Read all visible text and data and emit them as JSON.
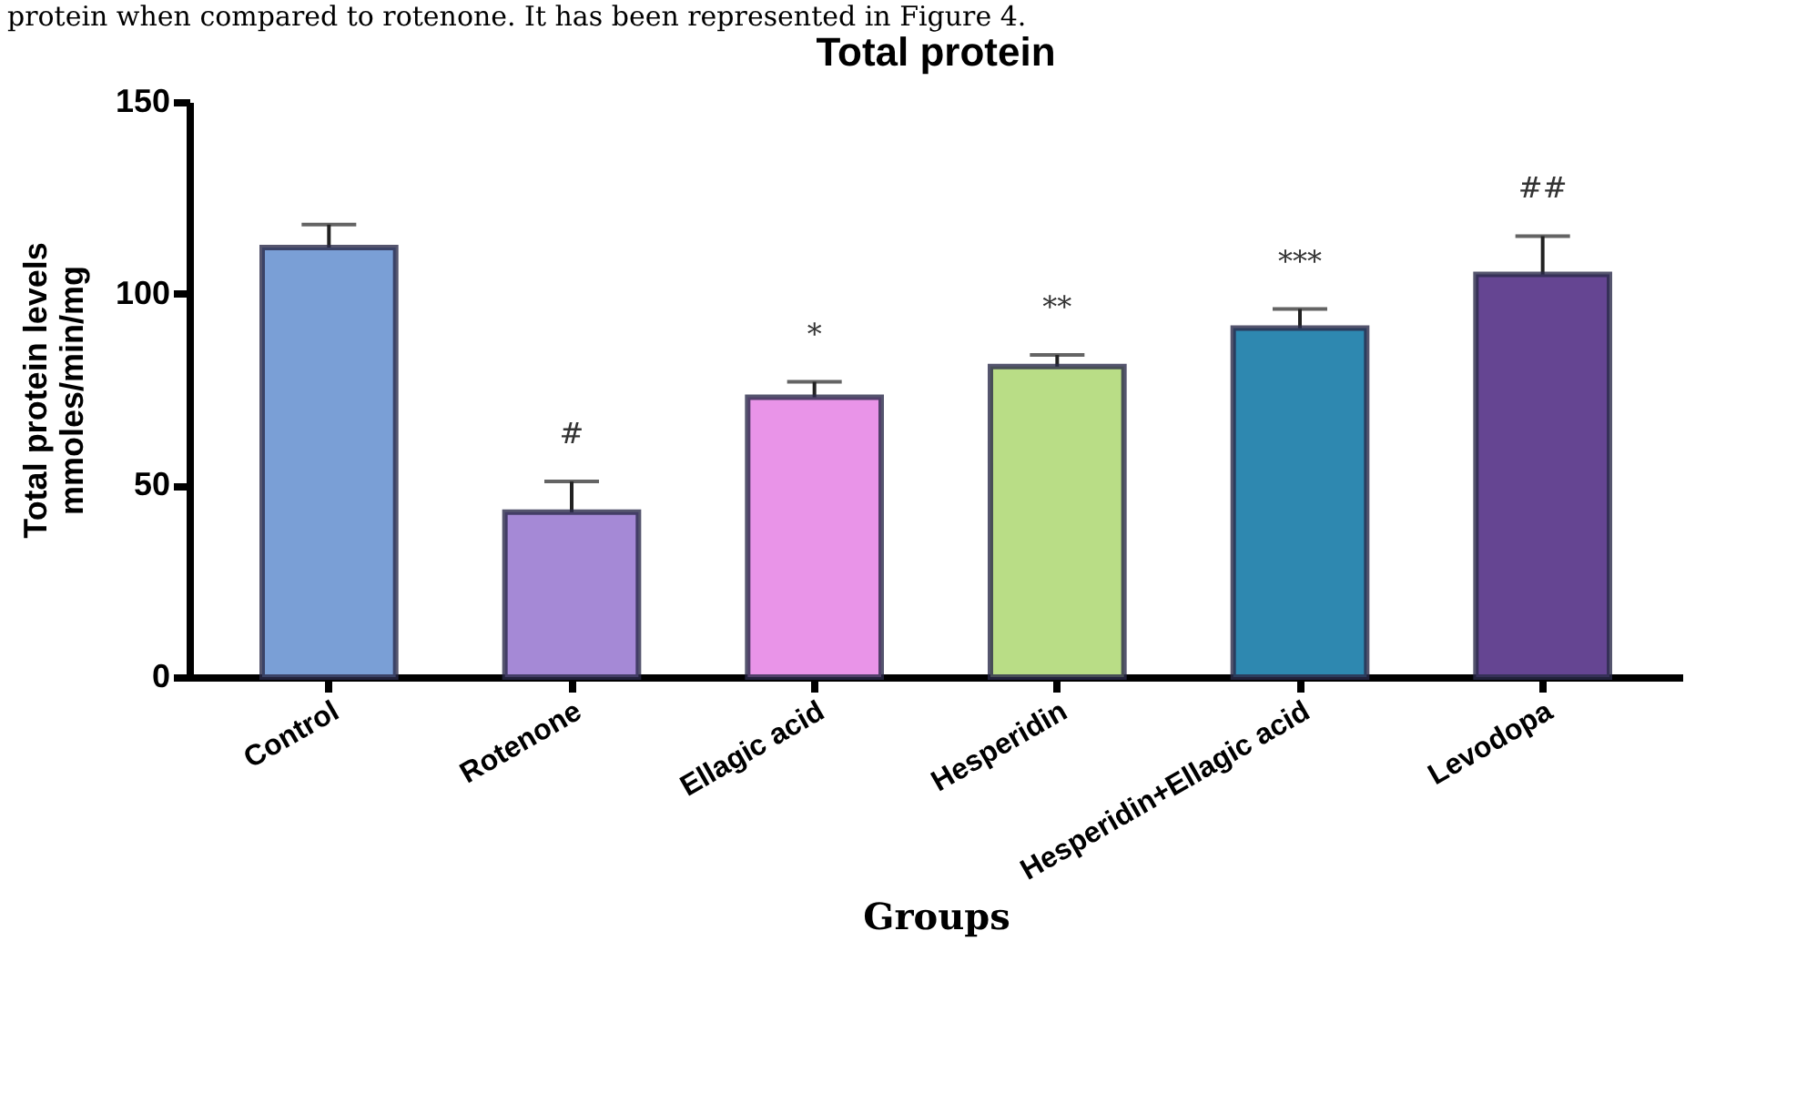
{
  "chart_data": {
    "type": "bar",
    "title": "Total protein",
    "xlabel": "Groups",
    "ylabel": "Total protein levels\nmmoles/min/mg",
    "categories": [
      "Control",
      "Rotenone",
      "Ellagic acid",
      "Hesperidin",
      "Hesperidin+Ellagic acid",
      "Levodopa"
    ],
    "values": [
      112,
      43,
      73,
      81,
      91,
      105
    ],
    "errors": [
      6,
      8,
      4,
      3,
      5,
      10
    ],
    "colors": [
      "#7a9fd6",
      "#a589d6",
      "#e994e8",
      "#b9dd86",
      "#2e88b0",
      "#654592"
    ],
    "ylim": [
      0,
      150
    ],
    "yticks": [
      0,
      50,
      100,
      150
    ],
    "grid": false,
    "value_labels": [
      null,
      "#",
      "*",
      "**",
      "***",
      "##"
    ],
    "annotations": [
      "protein when compared to rotenone. It has been represented in Figure 4."
    ]
  }
}
